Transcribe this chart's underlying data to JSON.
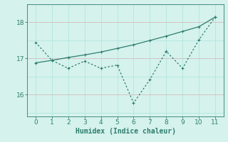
{
  "x": [
    0,
    1,
    2,
    3,
    4,
    5,
    6,
    7,
    8,
    9,
    10,
    11
  ],
  "y_data": [
    17.45,
    16.95,
    16.73,
    16.93,
    16.73,
    16.82,
    15.77,
    16.42,
    17.2,
    16.73,
    17.52,
    18.15
  ],
  "x_trend": [
    0,
    1,
    2,
    3,
    4,
    5,
    6,
    7,
    8,
    9,
    10,
    11
  ],
  "y_trend": [
    16.88,
    16.95,
    17.03,
    17.1,
    17.18,
    17.28,
    17.38,
    17.5,
    17.62,
    17.75,
    17.88,
    18.15
  ],
  "line_color": "#2e7d6e",
  "bg_color": "#d5f2ed",
  "grid_color_main": "#b8e8e0",
  "grid_color_red": "#d4b0b0",
  "xlabel": "Humidex (Indice chaleur)",
  "ylim": [
    15.4,
    18.5
  ],
  "xlim": [
    -0.5,
    11.5
  ],
  "yticks": [
    16,
    17,
    18
  ],
  "xticks": [
    0,
    1,
    2,
    3,
    4,
    5,
    6,
    7,
    8,
    9,
    10,
    11
  ]
}
